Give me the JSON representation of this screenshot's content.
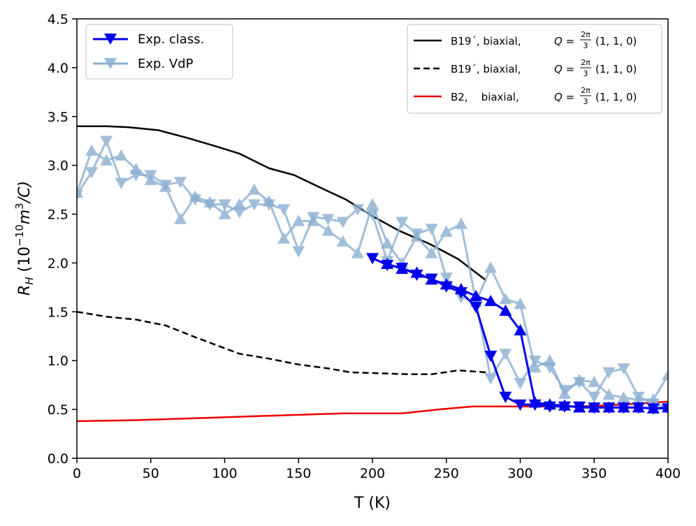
{
  "chart_data": {
    "type": "line",
    "title": "",
    "xlabel": "T (K)",
    "ylabel": "R_H (10^-10 m^3/C)",
    "ylabel_parts": {
      "main": "R",
      "sub": "H",
      "open": " (10",
      "exp1": "−10",
      "mid": "m",
      "exp2": "3",
      "close": "/C)"
    },
    "xlim": [
      0,
      400
    ],
    "ylim": [
      0.0,
      4.5
    ],
    "xticks": [
      0,
      50,
      100,
      150,
      200,
      250,
      300,
      350,
      400
    ],
    "yticks": [
      0.0,
      0.5,
      1.0,
      1.5,
      2.0,
      2.5,
      3.0,
      3.5,
      4.0,
      4.5
    ],
    "xtick_labels": [
      "0",
      "50",
      "100",
      "150",
      "200",
      "250",
      "300",
      "350",
      "400"
    ],
    "ytick_labels": [
      "0.0",
      "0.5",
      "1.0",
      "1.5",
      "2.0",
      "2.5",
      "3.0",
      "3.5",
      "4.0",
      "4.5"
    ],
    "legend_left": [
      {
        "label": "Exp. class.",
        "color": "#0000ee",
        "marker": "triangle-down"
      },
      {
        "label": "Exp. VdP",
        "color": "#8aafd0",
        "marker": "triangle-down"
      }
    ],
    "legend_right": [
      {
        "label": "B19´, biaxial,",
        "q": "Q =",
        "frac_num": "2π",
        "frac_den": "3",
        "vec": "(1, 1, 0)",
        "color": "#000000",
        "style": "solid"
      },
      {
        "label": "B19´, biaxial,",
        "q": "Q =",
        "frac_num": "2π",
        "frac_den": "3",
        "vec": "(1, 1, 0)",
        "color": "#000000",
        "style": "dashed"
      },
      {
        "label": "B2,    biaxial,",
        "q": "Q =",
        "frac_num": "2π",
        "frac_den": "3",
        "vec": "(1, 1, 0)",
        "color": "#ee0000",
        "style": "solid"
      }
    ],
    "series": [
      {
        "name": "B19´ biaxial solid",
        "color": "#000000",
        "style": "solid",
        "width": 2.5,
        "x": [
          0,
          20,
          35,
          55,
          75,
          95,
          110,
          130,
          147,
          165,
          182,
          200,
          218,
          238,
          258,
          277
        ],
        "y": [
          3.4,
          3.4,
          3.39,
          3.36,
          3.28,
          3.19,
          3.12,
          2.97,
          2.9,
          2.77,
          2.65,
          2.48,
          2.33,
          2.2,
          2.04,
          1.82
        ]
      },
      {
        "name": "B19´ biaxial dashed",
        "color": "#000000",
        "style": "dashed",
        "width": 2.5,
        "x": [
          0,
          20,
          40,
          60,
          80,
          110,
          130,
          150,
          170,
          185,
          205,
          225,
          240,
          258,
          277
        ],
        "y": [
          1.5,
          1.45,
          1.42,
          1.36,
          1.24,
          1.07,
          1.02,
          0.96,
          0.92,
          0.88,
          0.87,
          0.86,
          0.86,
          0.9,
          0.88
        ]
      },
      {
        "name": "B2 biaxial",
        "color": "#ee0000",
        "style": "solid",
        "width": 2.5,
        "x": [
          0,
          40,
          80,
          120,
          160,
          180,
          220,
          245,
          268,
          300,
          340,
          370,
          400
        ],
        "y": [
          0.38,
          0.39,
          0.41,
          0.43,
          0.45,
          0.46,
          0.46,
          0.5,
          0.53,
          0.53,
          0.53,
          0.55,
          0.58
        ]
      },
      {
        "name": "Exp. VdP (down)",
        "color": "#8aafd0",
        "marker": "triangle-down",
        "style": "solid",
        "width": 3,
        "opacity": 0.8,
        "x": [
          0,
          10,
          20,
          30,
          40,
          50,
          60,
          70,
          80,
          90,
          100,
          110,
          120,
          130,
          140,
          150,
          160,
          170,
          180,
          190,
          200,
          210,
          220,
          230,
          240,
          250,
          260,
          270,
          280,
          290,
          300,
          310,
          320,
          330,
          340,
          350,
          360,
          370,
          380,
          390,
          400
        ],
        "y": [
          2.7,
          2.93,
          3.25,
          2.82,
          2.9,
          2.9,
          2.8,
          2.83,
          2.65,
          2.6,
          2.6,
          2.52,
          2.6,
          2.6,
          2.55,
          2.12,
          2.47,
          2.45,
          2.42,
          2.55,
          2.5,
          2.02,
          2.42,
          2.3,
          2.35,
          1.85,
          1.65,
          1.6,
          0.82,
          1.07,
          0.77,
          1.0,
          0.93,
          0.7,
          0.78,
          0.63,
          0.88,
          0.92,
          0.63,
          0.56,
          0.52
        ]
      },
      {
        "name": "Exp. VdP (up)",
        "color": "#8aafd0",
        "marker": "triangle-up",
        "style": "solid",
        "width": 3,
        "opacity": 0.8,
        "x": [
          0,
          10,
          20,
          30,
          40,
          50,
          60,
          70,
          80,
          90,
          100,
          110,
          120,
          130,
          140,
          150,
          160,
          170,
          180,
          190,
          200,
          210,
          220,
          230,
          240,
          250,
          260,
          270,
          280,
          290,
          300,
          310,
          320,
          330,
          340,
          350,
          360,
          370,
          380,
          390,
          400
        ],
        "y": [
          2.72,
          3.15,
          3.05,
          3.1,
          2.96,
          2.85,
          2.78,
          2.45,
          2.68,
          2.62,
          2.5,
          2.6,
          2.75,
          2.63,
          2.25,
          2.43,
          2.43,
          2.33,
          2.22,
          2.1,
          2.6,
          2.2,
          2.0,
          2.27,
          2.1,
          2.32,
          2.4,
          1.6,
          1.95,
          1.63,
          1.58,
          0.93,
          1.0,
          0.66,
          0.8,
          0.78,
          0.65,
          0.62,
          0.6,
          0.6,
          0.85
        ]
      },
      {
        "name": "Exp. class. (down)",
        "color": "#0000ee",
        "marker": "triangle-down",
        "style": "solid",
        "width": 3,
        "x": [
          200,
          210,
          220,
          230,
          240,
          250,
          260,
          270,
          280,
          290,
          300,
          310,
          320,
          330,
          340,
          350,
          360,
          370,
          380,
          390,
          400
        ],
        "y": [
          2.05,
          1.98,
          1.95,
          1.88,
          1.84,
          1.76,
          1.7,
          1.55,
          1.05,
          0.63,
          0.55,
          0.55,
          0.53,
          0.53,
          0.53,
          0.52,
          0.52,
          0.52,
          0.52,
          0.51,
          0.51
        ]
      },
      {
        "name": "Exp. class. (up)",
        "color": "#0000ee",
        "marker": "triangle-up",
        "style": "solid",
        "width": 3,
        "x": [
          210,
          220,
          230,
          240,
          250,
          260,
          270,
          280,
          290,
          300,
          310,
          320,
          330,
          340,
          350,
          360,
          370,
          380,
          390,
          400
        ],
        "y": [
          1.99,
          1.94,
          1.9,
          1.83,
          1.78,
          1.73,
          1.66,
          1.61,
          1.51,
          1.31,
          0.57,
          0.55,
          0.54,
          0.52,
          0.52,
          0.52,
          0.52,
          0.52,
          0.51,
          0.52
        ]
      }
    ]
  }
}
